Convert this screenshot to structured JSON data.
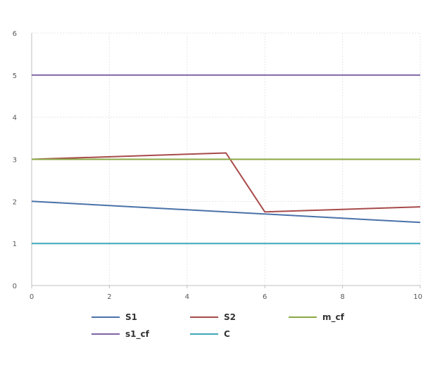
{
  "chart_data": {
    "type": "line",
    "title": "",
    "xlabel": "",
    "ylabel": "",
    "xlim": [
      0,
      10
    ],
    "ylim": [
      0,
      6
    ],
    "x_ticks": [
      0,
      2,
      4,
      6,
      8,
      10
    ],
    "y_ticks": [
      0,
      1,
      2,
      3,
      4,
      5,
      6
    ],
    "grid": true,
    "legend_position": "bottom",
    "series": [
      {
        "name": "S1",
        "color": "#4a72a8",
        "x": [
          0,
          10
        ],
        "y": [
          2,
          1.5
        ]
      },
      {
        "name": "S2",
        "color": "#a84a4a",
        "x": [
          0,
          5,
          6,
          10
        ],
        "y": [
          3,
          3.15,
          1.75,
          1.87
        ]
      },
      {
        "name": "m_cf",
        "color": "#8aa845",
        "x": [
          0,
          10
        ],
        "y": [
          3,
          3
        ]
      },
      {
        "name": "s1_cf",
        "color": "#7f63a4",
        "x": [
          0,
          10
        ],
        "y": [
          5,
          5
        ]
      },
      {
        "name": "C",
        "color": "#3fa6ba",
        "x": [
          0,
          10
        ],
        "y": [
          1,
          1
        ]
      }
    ]
  }
}
